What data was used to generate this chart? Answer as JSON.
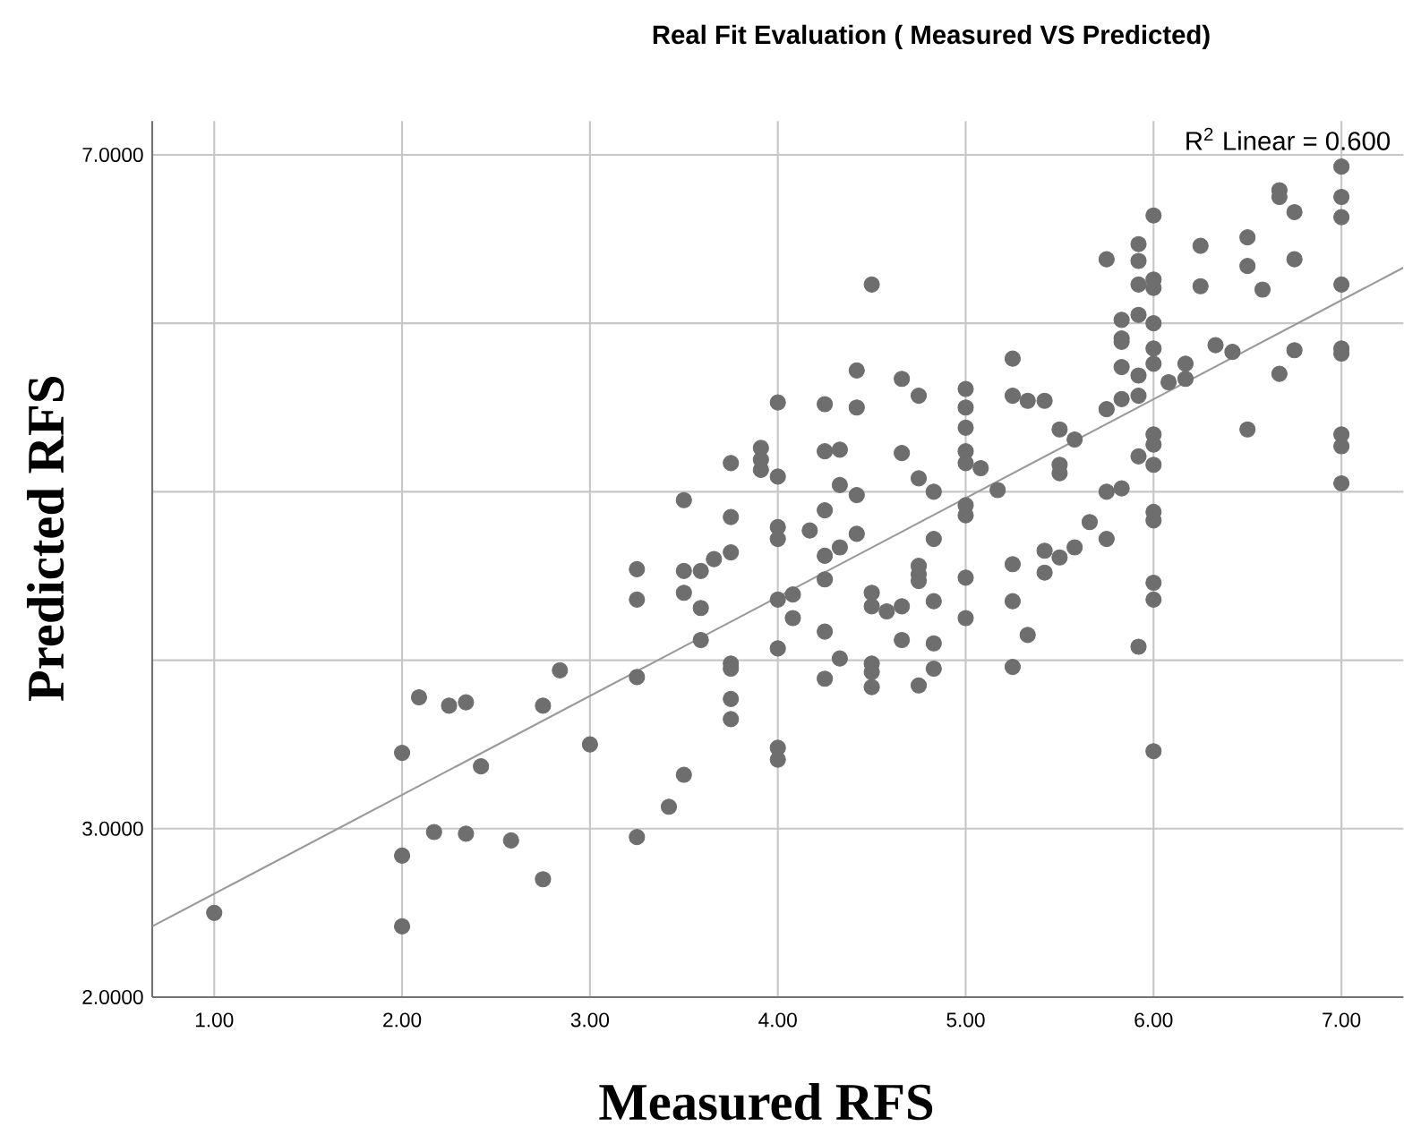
{
  "chart_data": {
    "type": "scatter",
    "title": "Real Fit Evaluation ( Measured VS Predicted)",
    "xlabel": "Measured RFS",
    "ylabel": "Predicted RFS",
    "annotations": [
      "R$^{2}$ Linear = 0.600"
    ],
    "xlim": [
      0.67,
      7.33
    ],
    "ylim": [
      2,
      7.2
    ],
    "xticks": [
      {
        "value": 1,
        "label": "1.00"
      },
      {
        "value": 2,
        "label": "2.00"
      },
      {
        "value": 3,
        "label": "3.00"
      },
      {
        "value": 4,
        "label": "4.00"
      },
      {
        "value": 5,
        "label": "5.00"
      },
      {
        "value": 6,
        "label": "6.00"
      },
      {
        "value": 7,
        "label": "7.00"
      }
    ],
    "yticks": [
      {
        "value": 2,
        "label": "2.0000"
      },
      {
        "value": 3,
        "label": "3.0000"
      },
      {
        "value": 4,
        "label": null
      },
      {
        "value": 5,
        "label": null
      },
      {
        "value": 6,
        "label": null
      },
      {
        "value": 7,
        "label": "7.0000"
      }
    ],
    "grid": true,
    "marker": "circle",
    "series": [
      {
        "color": "#6e6e6e",
        "x": [
          1,
          2,
          2,
          2,
          2.09,
          2.17,
          2.25,
          2.34,
          2.34,
          2.42,
          2.58,
          2.75,
          2.75,
          2.84,
          3.0,
          3.25,
          3.25,
          3.25,
          3.25,
          3.42,
          3.5,
          3.5,
          3.5,
          3.5,
          3.59,
          3.59,
          3.59,
          3.66,
          3.75,
          3.75,
          3.75,
          3.75,
          3.75,
          3.75,
          3.75,
          3.91,
          3.91,
          3.91,
          4,
          4,
          4,
          4,
          4,
          4,
          4,
          4,
          4.08,
          4.08,
          4.17,
          4.25,
          4.25,
          4.25,
          4.25,
          4.25,
          4.25,
          4.25,
          4.33,
          4.33,
          4.33,
          4.33,
          4.42,
          4.42,
          4.42,
          4.42,
          4.5,
          4.5,
          4.5,
          4.5,
          4.5,
          4.5,
          4.58,
          4.66,
          4.66,
          4.66,
          4.66,
          4.75,
          4.75,
          4.75,
          4.75,
          4.75,
          4.75,
          4.83,
          4.83,
          4.83,
          4.83,
          4.83,
          5,
          5,
          5,
          5,
          5,
          5,
          5,
          5,
          5,
          5.08,
          5.17,
          5.25,
          5.25,
          5.25,
          5.25,
          5.25,
          5.33,
          5.42,
          5.33,
          5.42,
          5.42,
          5.5,
          5.5,
          5.5,
          5.5,
          5.58,
          5.58,
          5.66,
          5.75,
          5.75,
          5.75,
          5.75,
          5.83,
          5.83,
          5.83,
          5.83,
          5.83,
          5.83,
          5.92,
          5.92,
          5.92,
          5.92,
          5.92,
          5.92,
          5.92,
          5.92,
          6,
          6,
          6,
          6,
          6,
          6,
          6,
          6,
          6,
          6,
          6,
          6,
          6,
          6,
          6.08,
          6.17,
          6.17,
          6.25,
          6.25,
          6.33,
          6.42,
          6.5,
          6.5,
          6.5,
          6.58,
          6.67,
          6.67,
          6.67,
          6.75,
          6.75,
          6.75,
          7,
          7,
          7,
          7,
          7,
          7,
          7,
          7,
          7
        ],
        "values": [
          2.5,
          3.45,
          2.84,
          2.42,
          3.78,
          2.98,
          3.73,
          3.75,
          2.97,
          3.37,
          2.93,
          3.73,
          2.7,
          3.94,
          3.5,
          4.54,
          4.36,
          3.9,
          2.95,
          3.13,
          4.95,
          4.53,
          4.4,
          3.32,
          4.53,
          4.31,
          4.12,
          4.6,
          5.17,
          4.85,
          4.64,
          3.98,
          3.95,
          3.77,
          3.65,
          5.26,
          5.19,
          5.13,
          5.53,
          5.09,
          4.79,
          4.72,
          4.36,
          4.07,
          3.48,
          3.41,
          4.39,
          4.25,
          4.77,
          5.52,
          5.24,
          4.89,
          4.62,
          4.48,
          4.17,
          3.89,
          5.25,
          5.04,
          4.67,
          4.01,
          5.72,
          5.5,
          4.98,
          4.75,
          6.23,
          4.4,
          4.32,
          3.98,
          3.93,
          3.84,
          4.29,
          5.67,
          5.23,
          4.32,
          4.12,
          5.57,
          5.08,
          4.56,
          4.51,
          4.47,
          3.85,
          5.0,
          4.72,
          4.35,
          4.1,
          3.95,
          5.61,
          5.5,
          5.38,
          5.24,
          5.17,
          4.92,
          4.86,
          4.49,
          4.25,
          5.14,
          5.01,
          5.79,
          5.57,
          4.57,
          4.35,
          3.96,
          5.54,
          5.54,
          4.15,
          4.65,
          4.52,
          5.37,
          5.16,
          5.11,
          4.61,
          5.31,
          4.67,
          4.82,
          6.38,
          5.49,
          5.0,
          4.72,
          6.02,
          5.91,
          5.89,
          5.74,
          5.55,
          5.02,
          6.47,
          6.37,
          6.23,
          6.05,
          5.69,
          5.57,
          5.21,
          4.08,
          6.64,
          6.26,
          6.21,
          6.0,
          5.85,
          5.76,
          5.34,
          5.28,
          5.16,
          4.88,
          4.83,
          4.46,
          4.36,
          3.46,
          5.65,
          5.76,
          5.67,
          6.46,
          6.22,
          5.87,
          5.83,
          6.51,
          6.34,
          5.37,
          6.2,
          6.79,
          6.75,
          5.7,
          6.66,
          6.38,
          5.84,
          6.93,
          6.75,
          6.63,
          6.23,
          5.85,
          5.82,
          5.34,
          5.27,
          5.05
        ]
      },
      {
        "type": "line",
        "color": "#999999",
        "marker": "none",
        "x": [
          0.67,
          7.33
        ],
        "values": [
          2.42,
          6.33
        ]
      }
    ]
  }
}
